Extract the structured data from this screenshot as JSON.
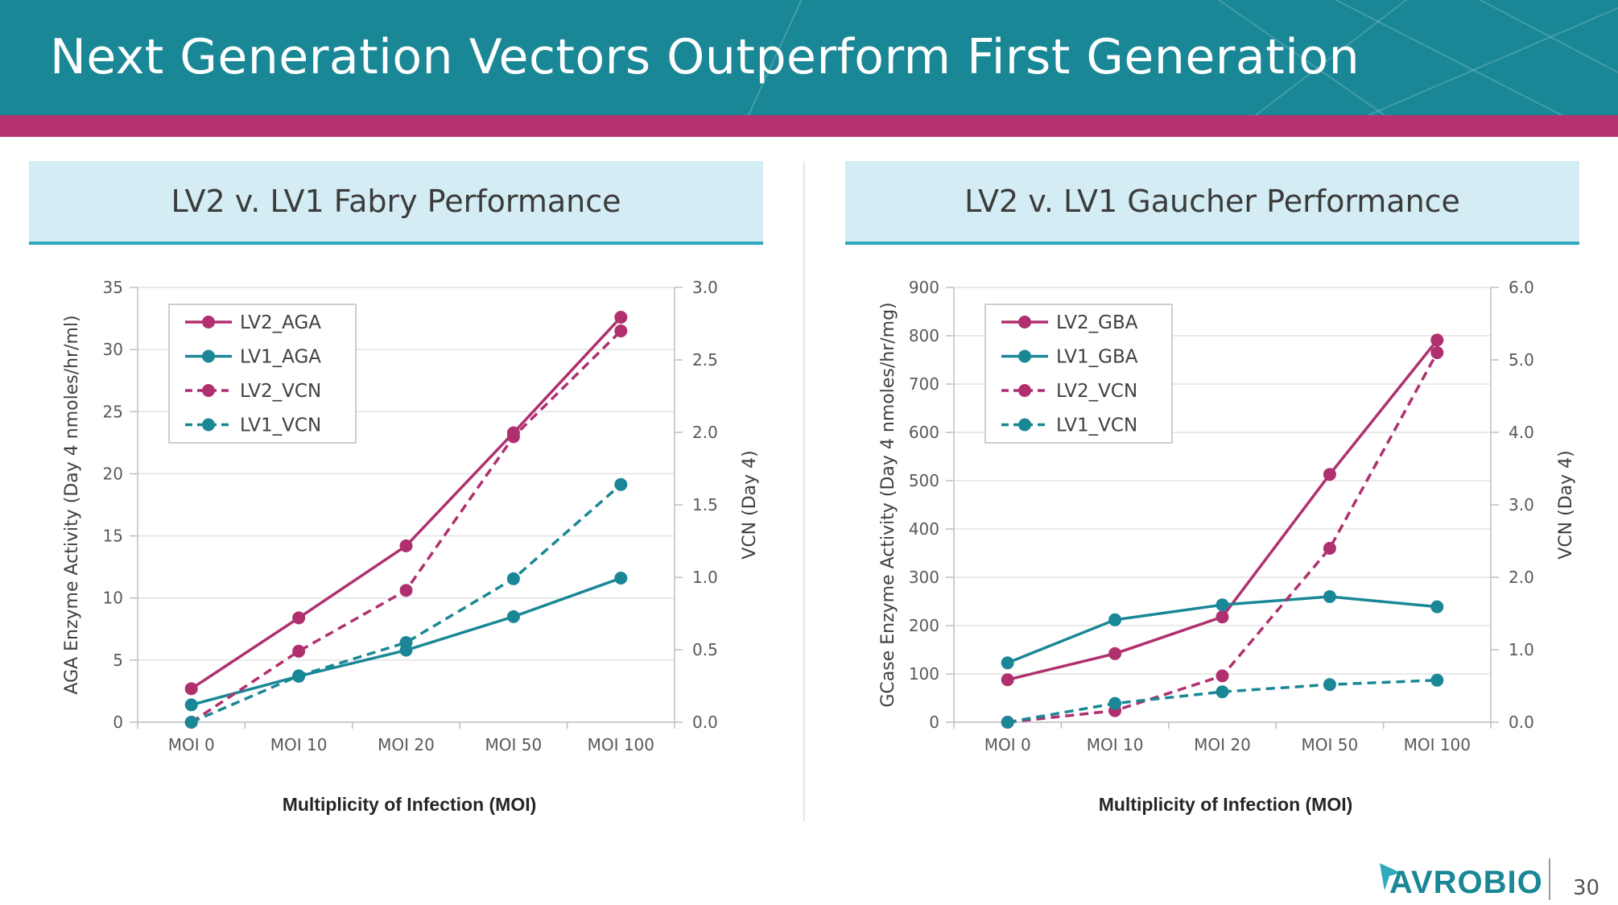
{
  "slide": {
    "title": "Next Generation Vectors Outperform First Generation",
    "page_number": "30",
    "logo_text": "AVROBIO"
  },
  "panels": [
    {
      "title": "LV2 v. LV1 Fabry Performance"
    },
    {
      "title": "LV2 v. LV1 Gaucher Performance"
    }
  ],
  "colors": {
    "header": "#1a8796",
    "stripe": "#b5326f",
    "magenta": "#b0306f",
    "teal": "#1a8796",
    "panel_bg": "#d4ecf3",
    "panel_border": "#2fa9bb"
  },
  "chart_data": [
    {
      "type": "line",
      "title": "LV2 v. LV1 Fabry Performance",
      "categories": [
        "MOI 0",
        "MOI 10",
        "MOI 20",
        "MOI 50",
        "MOI 100"
      ],
      "xlabel": "Multiplicity of Infection (MOI)",
      "ylabel": "AGA Enzyme Activity (Day 4 nmoles/hr/ml)",
      "ylabel_right": "VCN (Day 4)",
      "ylim": [
        0,
        35
      ],
      "yticks": [
        "0",
        "5",
        "10",
        "15",
        "20",
        "25",
        "30",
        "35"
      ],
      "ylim_right": [
        0,
        3
      ],
      "yticks_right": [
        "0.0",
        "0.5",
        "1.0",
        "1.5",
        "2.0",
        "2.5",
        "3.0"
      ],
      "legend_position": "top-left",
      "series": [
        {
          "name": "LV2_AGA",
          "axis": "left",
          "color": "#b0306f",
          "dashed": false,
          "values": [
            2.7,
            8.4,
            14.2,
            23.3,
            32.6
          ]
        },
        {
          "name": "LV1_AGA",
          "axis": "left",
          "color": "#1a8796",
          "dashed": false,
          "values": [
            1.4,
            3.7,
            5.8,
            8.5,
            11.6
          ]
        },
        {
          "name": "LV2_VCN",
          "axis": "right",
          "color": "#b0306f",
          "dashed": true,
          "values": [
            0.0,
            0.49,
            0.91,
            1.97,
            2.7
          ]
        },
        {
          "name": "LV1_VCN",
          "axis": "right",
          "color": "#1a8796",
          "dashed": true,
          "values": [
            0.0,
            0.32,
            0.55,
            0.99,
            1.64
          ]
        }
      ]
    },
    {
      "type": "line",
      "title": "LV2 v. LV1 Gaucher Performance",
      "categories": [
        "MOI 0",
        "MOI 10",
        "MOI 20",
        "MOI 50",
        "MOI 100"
      ],
      "xlabel": "Multiplicity of Infection (MOI)",
      "ylabel": "GCase Enzyme Activity (Day 4 nmoles/hr/mg)",
      "ylabel_right": "VCN (Day 4)",
      "ylim": [
        0,
        900
      ],
      "yticks": [
        "0",
        "100",
        "200",
        "300",
        "400",
        "500",
        "600",
        "700",
        "800",
        "900"
      ],
      "ylim_right": [
        0,
        6
      ],
      "yticks_right": [
        "0.0",
        "1.0",
        "2.0",
        "3.0",
        "4.0",
        "5.0",
        "6.0"
      ],
      "legend_position": "top-left",
      "series": [
        {
          "name": "LV2_GBA",
          "axis": "left",
          "color": "#b0306f",
          "dashed": false,
          "values": [
            88,
            142,
            218,
            513,
            791
          ]
        },
        {
          "name": "LV1_GBA",
          "axis": "left",
          "color": "#1a8796",
          "dashed": false,
          "values": [
            123,
            212,
            243,
            260,
            239
          ]
        },
        {
          "name": "LV2_VCN",
          "axis": "right",
          "color": "#b0306f",
          "dashed": true,
          "values": [
            0.0,
            0.16,
            0.64,
            2.4,
            5.1
          ]
        },
        {
          "name": "LV1_VCN",
          "axis": "right",
          "color": "#1a8796",
          "dashed": true,
          "values": [
            0.0,
            0.26,
            0.42,
            0.52,
            0.58
          ]
        }
      ]
    }
  ]
}
